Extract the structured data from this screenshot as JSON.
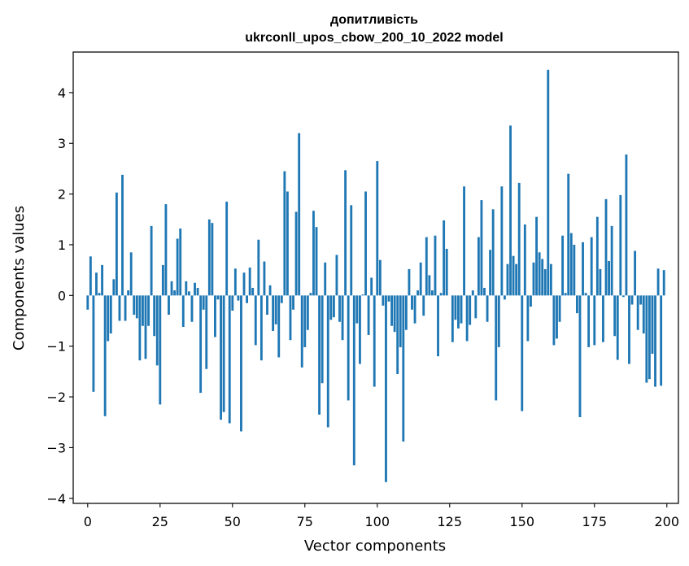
{
  "chart_data": {
    "type": "bar",
    "title": "допитливість",
    "subtitle": "ukrconll_upos_cbow_200_10_2022 model",
    "xlabel": "Vector components",
    "ylabel": "Components values",
    "xlim": [
      -5,
      204
    ],
    "ylim": [
      -4.1,
      4.8
    ],
    "xticks": [
      0,
      25,
      50,
      75,
      100,
      125,
      150,
      175,
      200
    ],
    "xtick_labels": [
      "0",
      "25",
      "50",
      "75",
      "100",
      "125",
      "150",
      "175",
      "200"
    ],
    "yticks": [
      -4,
      -3,
      -2,
      -1,
      0,
      1,
      2,
      3,
      4
    ],
    "ytick_labels": [
      "−4",
      "−3",
      "−2",
      "−1",
      "0",
      "1",
      "2",
      "3",
      "4"
    ],
    "bar_color": "#1f77b4",
    "grid": false,
    "x": [
      0,
      1,
      2,
      3,
      4,
      5,
      6,
      7,
      8,
      9,
      10,
      11,
      12,
      13,
      14,
      15,
      16,
      17,
      18,
      19,
      20,
      21,
      22,
      23,
      24,
      25,
      26,
      27,
      28,
      29,
      30,
      31,
      32,
      33,
      34,
      35,
      36,
      37,
      38,
      39,
      40,
      41,
      42,
      43,
      44,
      45,
      46,
      47,
      48,
      49,
      50,
      51,
      52,
      53,
      54,
      55,
      56,
      57,
      58,
      59,
      60,
      61,
      62,
      63,
      64,
      65,
      66,
      67,
      68,
      69,
      70,
      71,
      72,
      73,
      74,
      75,
      76,
      77,
      78,
      79,
      80,
      81,
      82,
      83,
      84,
      85,
      86,
      87,
      88,
      89,
      90,
      91,
      92,
      93,
      94,
      95,
      96,
      97,
      98,
      99,
      100,
      101,
      102,
      103,
      104,
      105,
      106,
      107,
      108,
      109,
      110,
      111,
      112,
      113,
      114,
      115,
      116,
      117,
      118,
      119,
      120,
      121,
      122,
      123,
      124,
      125,
      126,
      127,
      128,
      129,
      130,
      131,
      132,
      133,
      134,
      135,
      136,
      137,
      138,
      139,
      140,
      141,
      142,
      143,
      144,
      145,
      146,
      147,
      148,
      149,
      150,
      151,
      152,
      153,
      154,
      155,
      156,
      157,
      158,
      159,
      160,
      161,
      162,
      163,
      164,
      165,
      166,
      167,
      168,
      169,
      170,
      171,
      172,
      173,
      174,
      175,
      176,
      177,
      178,
      179,
      180,
      181,
      182,
      183,
      184,
      185,
      186,
      187,
      188,
      189,
      190,
      191,
      192,
      193,
      194,
      195,
      196,
      197,
      198,
      199
    ],
    "values": [
      -0.28,
      0.77,
      -1.9,
      0.45,
      0.05,
      0.6,
      -2.38,
      -0.9,
      -0.75,
      0.32,
      2.03,
      -0.5,
      2.38,
      -0.5,
      0.1,
      0.85,
      -0.38,
      -0.45,
      -1.28,
      -0.6,
      -1.25,
      -0.6,
      1.37,
      -0.8,
      -1.38,
      -2.15,
      0.6,
      1.8,
      -0.38,
      0.28,
      0.1,
      1.12,
      1.32,
      -0.62,
      0.28,
      0.08,
      -0.52,
      0.25,
      0.15,
      -1.92,
      -0.28,
      -1.45,
      1.5,
      1.43,
      -0.82,
      -0.08,
      -2.45,
      -2.3,
      1.85,
      -2.52,
      -0.3,
      0.53,
      -0.1,
      -2.68,
      0.45,
      -0.15,
      0.55,
      0.15,
      -0.98,
      1.1,
      -1.28,
      0.67,
      -0.38,
      0.2,
      -0.7,
      -0.57,
      -1.22,
      -0.15,
      2.45,
      2.05,
      -0.88,
      -0.28,
      1.65,
      3.2,
      -1.42,
      -1.02,
      -0.68,
      0.05,
      1.67,
      1.35,
      -2.35,
      -1.73,
      0.65,
      -2.6,
      -0.48,
      -0.43,
      0.8,
      -0.52,
      -0.88,
      2.47,
      -2.07,
      1.78,
      -3.35,
      -0.55,
      -1.35,
      0.02,
      2.05,
      -0.78,
      0.35,
      -1.8,
      2.65,
      0.7,
      -0.2,
      -3.68,
      -0.12,
      -0.6,
      -0.72,
      -1.55,
      -1.02,
      -2.88,
      -0.68,
      0.52,
      -0.28,
      -0.55,
      0.1,
      0.65,
      -0.4,
      1.15,
      0.4,
      0.1,
      1.18,
      -1.2,
      0.05,
      1.48,
      0.92,
      0.0,
      -0.92,
      -0.48,
      -0.65,
      -0.55,
      2.15,
      -0.9,
      -0.58,
      0.1,
      -0.45,
      1.15,
      1.88,
      0.15,
      -0.52,
      0.9,
      1.7,
      -2.07,
      -1.02,
      2.15,
      -0.08,
      0.62,
      3.35,
      0.78,
      0.62,
      2.22,
      -2.28,
      1.4,
      -0.9,
      -0.22,
      0.65,
      1.55,
      0.85,
      0.72,
      0.52,
      4.45,
      0.62,
      -0.98,
      -0.85,
      -0.52,
      1.18,
      0.05,
      2.4,
      1.23,
      1.0,
      -0.35,
      -2.4,
      1.05,
      0.05,
      -1.02,
      1.15,
      -0.98,
      1.55,
      0.52,
      -0.92,
      1.9,
      0.68,
      1.37,
      -0.8,
      -1.27,
      1.98,
      -0.03,
      2.78,
      -1.35,
      -0.18,
      0.88,
      -0.68,
      -0.18,
      -0.75,
      -1.72,
      -1.65,
      -1.15,
      -1.8,
      0.53,
      -1.78,
      0.5
    ]
  }
}
